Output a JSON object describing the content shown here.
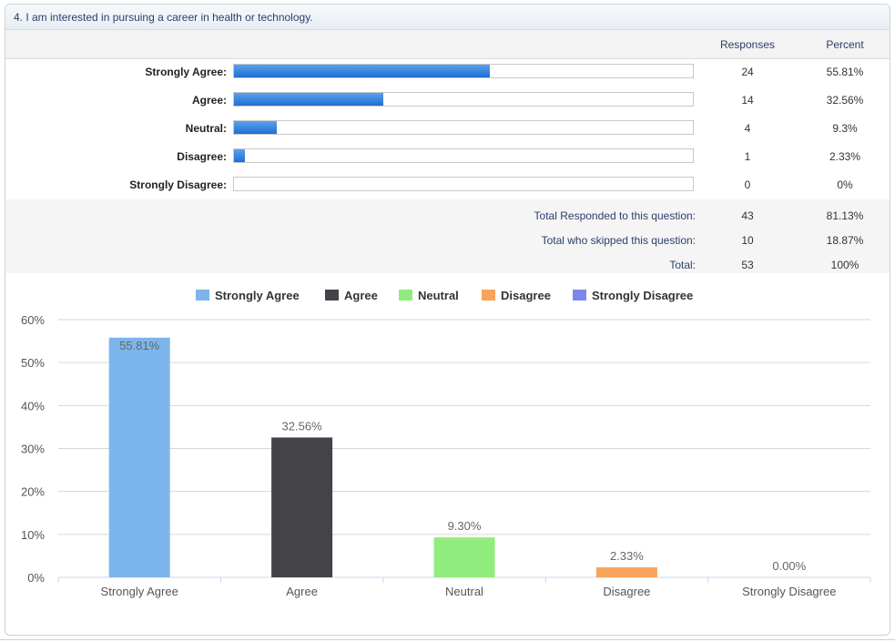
{
  "question": {
    "title": "4. I am interested in pursuing a career in health or technology."
  },
  "table": {
    "headers": {
      "responses": "Responses",
      "percent": "Percent"
    },
    "rows": [
      {
        "label": "Strongly Agree:",
        "responses": "24",
        "percent": "55.81%",
        "fraction": 0.5581
      },
      {
        "label": "Agree:",
        "responses": "14",
        "percent": "32.56%",
        "fraction": 0.3256
      },
      {
        "label": "Neutral:",
        "responses": "4",
        "percent": "9.3%",
        "fraction": 0.093
      },
      {
        "label": "Disagree:",
        "responses": "1",
        "percent": "2.33%",
        "fraction": 0.0233
      },
      {
        "label": "Strongly Disagree:",
        "responses": "0",
        "percent": "0%",
        "fraction": 0
      }
    ],
    "summary": [
      {
        "label": "Total Responded to this question:",
        "responses": "43",
        "percent": "81.13%"
      },
      {
        "label": "Total who skipped this question:",
        "responses": "10",
        "percent": "18.87%"
      },
      {
        "label": "Total:",
        "responses": "53",
        "percent": "100%"
      }
    ]
  },
  "chart_data": {
    "type": "bar",
    "categories": [
      "Strongly Agree",
      "Agree",
      "Neutral",
      "Disagree",
      "Strongly Disagree"
    ],
    "values": [
      55.81,
      32.56,
      9.3,
      2.33,
      0.0
    ],
    "value_labels": [
      "55.81%",
      "32.56%",
      "9.30%",
      "2.33%",
      "0.00%"
    ],
    "colors": [
      "#7cb5ec",
      "#434348",
      "#90ed7d",
      "#f7a35c",
      "#8085e9"
    ],
    "legend": [
      "Strongly Agree",
      "Agree",
      "Neutral",
      "Disagree",
      "Strongly Disagree"
    ],
    "legend_position": "top-center",
    "yticks": [
      "0%",
      "10%",
      "20%",
      "30%",
      "40%",
      "50%",
      "60%"
    ],
    "ylim": [
      0,
      60
    ],
    "grid": true,
    "title": "",
    "xlabel": "",
    "ylabel": ""
  }
}
